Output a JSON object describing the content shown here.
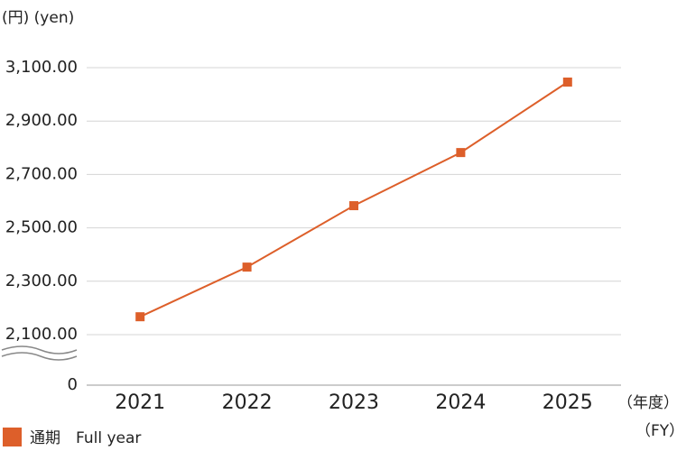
{
  "chart_data": {
    "type": "line",
    "y_label": "(円) (yen)",
    "x_label": [
      "（年度）",
      "（FY）"
    ],
    "categories": [
      "2021",
      "2022",
      "2023",
      "2024",
      "2025"
    ],
    "series": [
      {
        "name": "通期　Full year",
        "color": "#dd5f2a",
        "values": [
          2167,
          2353,
          2583,
          2782,
          3046
        ]
      }
    ],
    "ylim": [
      0,
      3100
    ],
    "axis_break": [
      0,
      2100
    ],
    "yticks": [
      0,
      {
        "value": 2100,
        "label": "2,100.00"
      },
      {
        "value": 2300,
        "label": "2,300.00"
      },
      {
        "value": 2500,
        "label": "2,500.00"
      },
      {
        "value": 2700,
        "label": "2,700.00"
      },
      {
        "value": 2900,
        "label": "2,900.00"
      },
      {
        "value": 3100,
        "label": "3,100.00"
      }
    ],
    "grid": true
  }
}
